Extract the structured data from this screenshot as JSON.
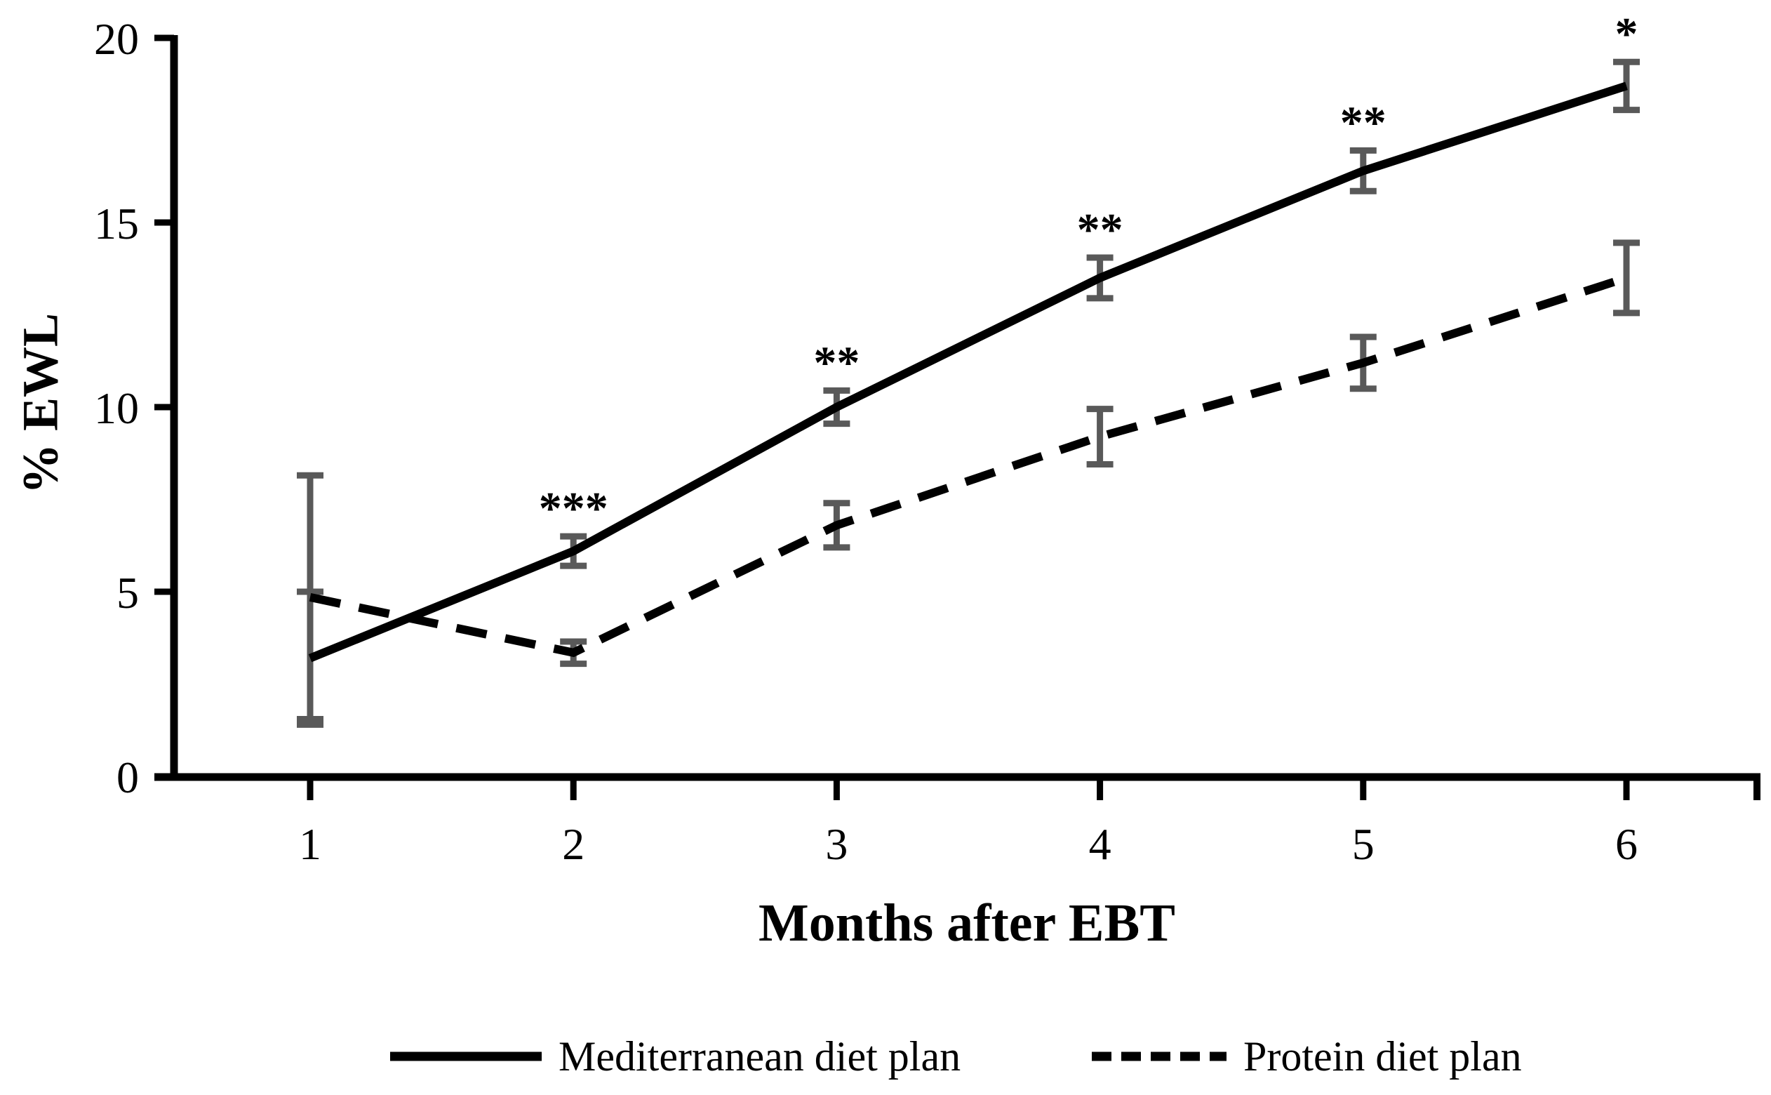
{
  "figure": {
    "background": "#ffffff",
    "line_color": "#000000",
    "error_bar_color": "#595959"
  },
  "chart_data": {
    "type": "line",
    "title": "",
    "xlabel": "Months after EBT",
    "ylabel": "% EWL",
    "x": [
      1,
      2,
      3,
      4,
      5,
      6
    ],
    "xtick_labels": [
      "1",
      "2",
      "3",
      "4",
      "5",
      "6"
    ],
    "ylim": [
      0,
      20
    ],
    "yticks": [
      0,
      5,
      10,
      15,
      20
    ],
    "grid": false,
    "legend_position": "bottom",
    "series": [
      {
        "name": "Mediterranean diet plan",
        "style": "solid",
        "color": "#000000",
        "values": [
          3.2,
          6.1,
          10.0,
          13.5,
          16.4,
          18.7
        ],
        "errors": [
          1.8,
          0.4,
          0.45,
          0.55,
          0.55,
          0.65
        ]
      },
      {
        "name": "Protein diet plan",
        "style": "dashed",
        "color": "#000000",
        "values": [
          4.85,
          3.35,
          6.8,
          9.2,
          11.2,
          13.5
        ],
        "errors": [
          3.3,
          0.3,
          0.6,
          0.75,
          0.7,
          0.95
        ]
      }
    ],
    "annotations": [
      {
        "x": 2,
        "label": "***"
      },
      {
        "x": 3,
        "label": "**"
      },
      {
        "x": 4,
        "label": "**"
      },
      {
        "x": 5,
        "label": "**"
      },
      {
        "x": 6,
        "label": "*"
      }
    ]
  },
  "legend": {
    "items": [
      {
        "label": "Mediterranean diet plan",
        "style": "solid"
      },
      {
        "label": "Protein diet plan",
        "style": "dashed"
      }
    ]
  }
}
